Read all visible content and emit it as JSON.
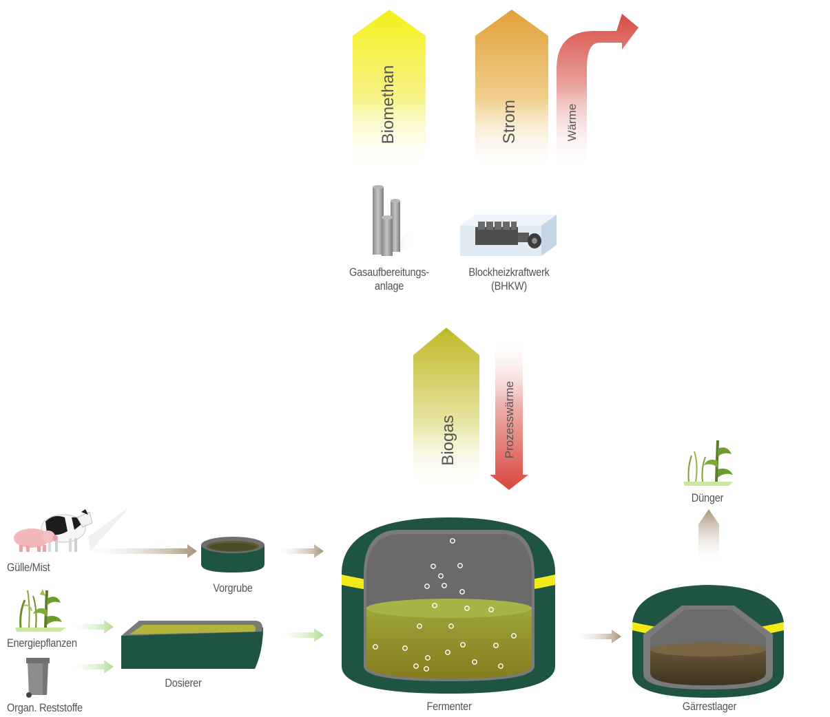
{
  "colors": {
    "yellow": "#f3ee1c",
    "orange": "#e3a43c",
    "red": "#d95048",
    "olive": "#c3bb2a",
    "dark_green": "#1f5443",
    "stripe_yellow": "#f4ec14",
    "tan": "#b8a68c",
    "light_green": "#bfe6a8",
    "label_gray": "#555555"
  },
  "outputs": {
    "biomethan": "Biomethan",
    "strom": "Strom",
    "waerme": "Wärme"
  },
  "plants": {
    "gasaufbereitung_line1": "Gasaufbereitungs-",
    "gasaufbereitung_line2": "anlage",
    "bhkw_line1": "Blockheizkraftwerk",
    "bhkw_line2": "(BHKW)"
  },
  "flows": {
    "biogas": "Biogas",
    "prozesswaerme": "Prozesswärme"
  },
  "inputs": {
    "guelle_mist": "Gülle/Mist",
    "energiepflanzen": "Energiepflanzen",
    "organ_reststoffe": "Organ. Reststoffe"
  },
  "tanks": {
    "vorgrube": "Vorgrube",
    "dosierer": "Dosierer",
    "fermenter": "Fermenter",
    "gaerrestlager": "Gärrestlager",
    "duenger": "Dünger"
  }
}
